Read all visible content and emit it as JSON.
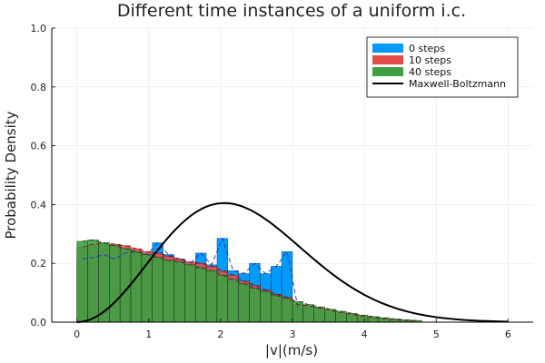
{
  "chart_data": {
    "type": "bar",
    "title": "Different time instances of a uniform i.c.",
    "xlabel": "|v|(m/s)",
    "ylabel": "Probability Density",
    "xlim": [
      -0.35,
      6.35
    ],
    "ylim": [
      0,
      1.0
    ],
    "xticks": [
      0,
      1,
      2,
      3,
      4,
      5,
      6
    ],
    "yticks": [
      0.0,
      0.2,
      0.4,
      0.6,
      0.8,
      1.0
    ],
    "grid": true,
    "legend_position": "top-right",
    "bin_width": 0.15,
    "bin_start": 0,
    "series": [
      {
        "name": "0 steps",
        "color": "#009AFA",
        "values": [
          0.215,
          0.22,
          0.23,
          0.215,
          0.235,
          0.24,
          0.23,
          0.27,
          0.23,
          0.215,
          0.2,
          0.235,
          0.195,
          0.285,
          0.175,
          0.165,
          0.2,
          0.165,
          0.19,
          0.24,
          0.05
        ]
      },
      {
        "name": "10 steps",
        "color": "#E44C4C",
        "values": [
          0.255,
          0.265,
          0.27,
          0.265,
          0.26,
          0.25,
          0.24,
          0.235,
          0.225,
          0.215,
          0.205,
          0.2,
          0.19,
          0.175,
          0.16,
          0.14,
          0.125,
          0.11,
          0.095,
          0.085,
          0.06,
          0.055,
          0.048,
          0.04,
          0.033,
          0.026,
          0.02,
          0.015,
          0.011,
          0.008,
          0.006,
          0.004
        ]
      },
      {
        "name": "40 steps",
        "color": "#3DA042",
        "values": [
          0.275,
          0.28,
          0.27,
          0.26,
          0.25,
          0.24,
          0.23,
          0.22,
          0.21,
          0.205,
          0.195,
          0.185,
          0.175,
          0.16,
          0.145,
          0.13,
          0.115,
          0.105,
          0.09,
          0.08,
          0.07,
          0.06,
          0.052,
          0.044,
          0.037,
          0.03,
          0.024,
          0.019,
          0.015,
          0.011,
          0.008,
          0.006
        ]
      },
      {
        "name": "Maxwell-Boltzmann",
        "color": "#000000",
        "kind": "line",
        "peak_x": 2.05,
        "peak_y": 0.405
      }
    ]
  }
}
